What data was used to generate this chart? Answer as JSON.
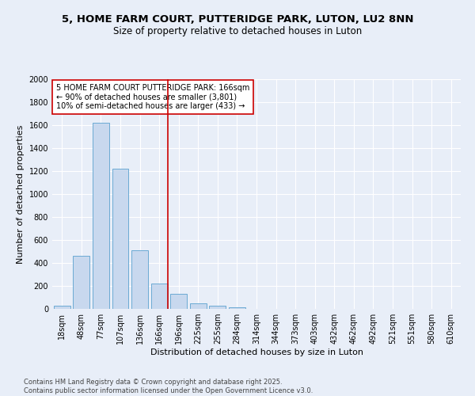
{
  "title_line1": "5, HOME FARM COURT, PUTTERIDGE PARK, LUTON, LU2 8NN",
  "title_line2": "Size of property relative to detached houses in Luton",
  "xlabel": "Distribution of detached houses by size in Luton",
  "ylabel": "Number of detached properties",
  "footnote1": "Contains HM Land Registry data © Crown copyright and database right 2025.",
  "footnote2": "Contains public sector information licensed under the Open Government Licence v3.0.",
  "categories": [
    "18sqm",
    "48sqm",
    "77sqm",
    "107sqm",
    "136sqm",
    "166sqm",
    "196sqm",
    "225sqm",
    "255sqm",
    "284sqm",
    "314sqm",
    "344sqm",
    "373sqm",
    "403sqm",
    "432sqm",
    "462sqm",
    "492sqm",
    "521sqm",
    "551sqm",
    "580sqm",
    "610sqm"
  ],
  "values": [
    30,
    460,
    1620,
    1220,
    510,
    220,
    130,
    50,
    25,
    15,
    0,
    0,
    0,
    0,
    0,
    0,
    0,
    0,
    0,
    0,
    0
  ],
  "bar_color": "#c8d8ee",
  "bar_edge_color": "#6baad4",
  "highlight_index": 5,
  "highlight_color": "#cc0000",
  "annotation_text": "5 HOME FARM COURT PUTTERIDGE PARK: 166sqm\n← 90% of detached houses are smaller (3,801)\n10% of semi-detached houses are larger (433) →",
  "annotation_box_color": "#ffffff",
  "annotation_box_edge_color": "#cc0000",
  "ylim": [
    0,
    2000
  ],
  "yticks": [
    0,
    200,
    400,
    600,
    800,
    1000,
    1200,
    1400,
    1600,
    1800,
    2000
  ],
  "background_color": "#e8eef8",
  "grid_color": "#ffffff",
  "title_fontsize": 9.5,
  "subtitle_fontsize": 8.5,
  "axis_label_fontsize": 8,
  "tick_fontsize": 7,
  "annotation_fontsize": 7,
  "footnote_fontsize": 6
}
